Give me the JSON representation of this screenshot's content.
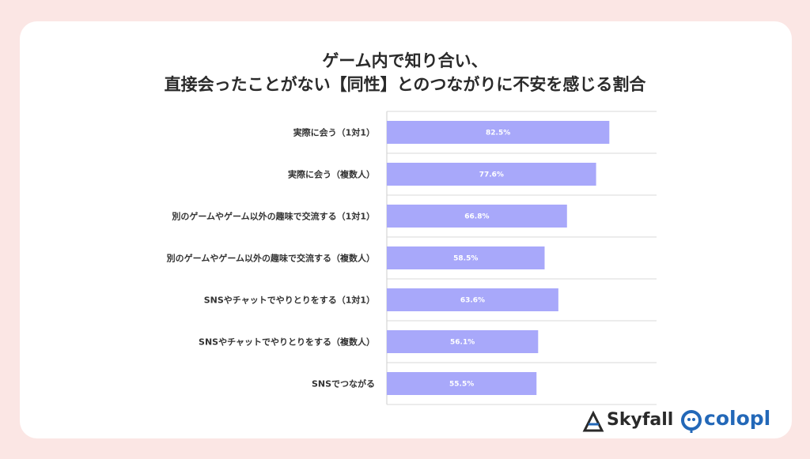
{
  "title_lines": [
    "ゲーム内で知り合い、",
    "直接会ったことがない【同性】とのつながりに不安を感じる割合"
  ],
  "chart_data": {
    "type": "bar",
    "orientation": "horizontal",
    "categories": [
      "実際に会う（1対1）",
      "実際に会う（複数人）",
      "別のゲームやゲーム以外の趣味で交流する（1対1）",
      "別のゲームやゲーム以外の趣味で交流する（複数人）",
      "SNSやチャットでやりとりをする（1対1）",
      "SNSやチャットでやりとりをする（複数人）",
      "SNSでつながる"
    ],
    "values": [
      82.5,
      77.6,
      66.8,
      58.5,
      63.6,
      56.1,
      55.5
    ],
    "value_labels": [
      "82.5%",
      "77.6%",
      "66.8%",
      "58.5%",
      "63.6%",
      "56.1%",
      "55.5%"
    ],
    "xlim": [
      0,
      100
    ],
    "grid": true,
    "bar_color": "#a8a8fa"
  },
  "logos": {
    "skyfall": "Skyfall",
    "colopl": "colopl",
    "colopl_color": "#2368b8"
  }
}
